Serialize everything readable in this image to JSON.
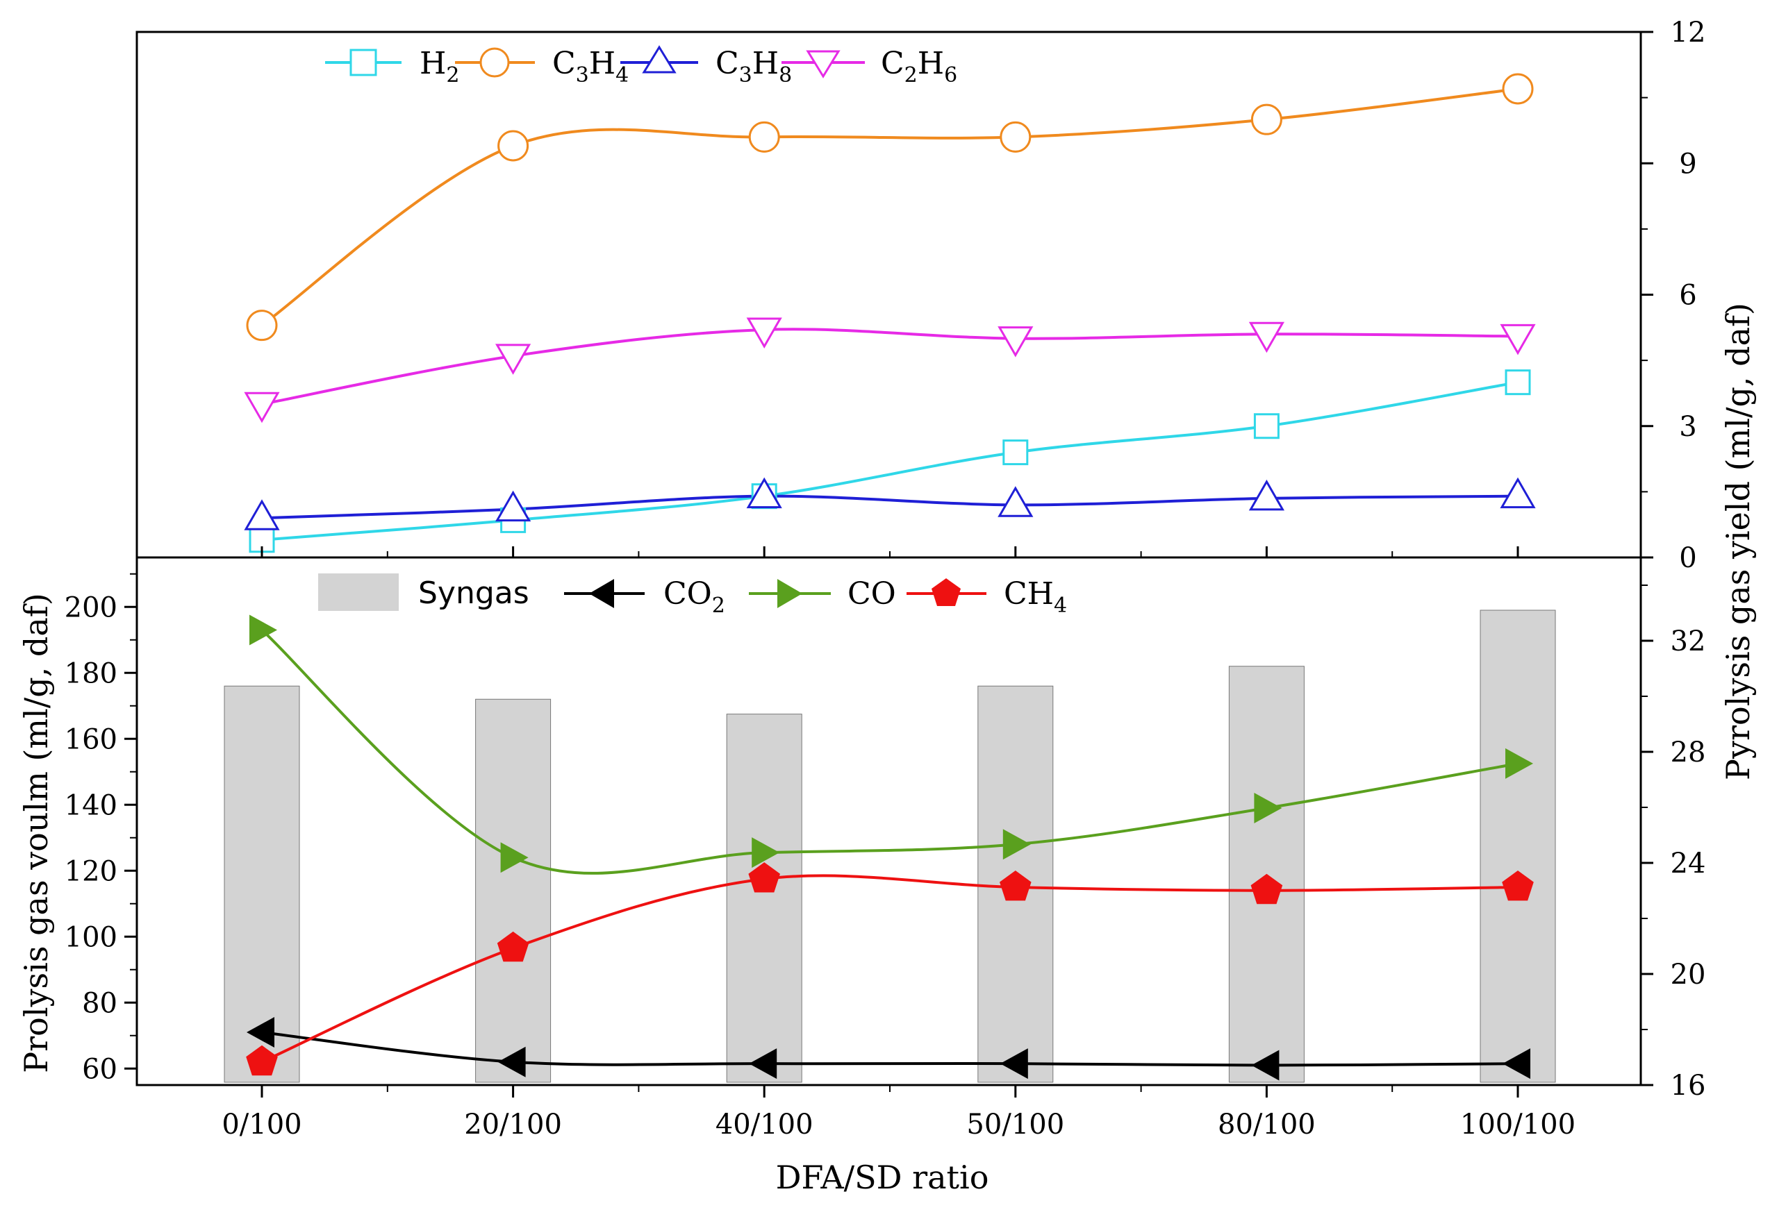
{
  "chart_data": {
    "type": "line",
    "xlabel": "DFA/SD ratio",
    "categories": [
      "0/100",
      "20/100",
      "40/100",
      "50/100",
      "80/100",
      "100/100"
    ],
    "panels": [
      {
        "id": "top",
        "axis": "right",
        "ylabel": "Pyrolysis gas yield (ml/g, daf)",
        "ylim": [
          0,
          12
        ],
        "yticks": [
          "0",
          "3",
          "6",
          "9",
          "12"
        ],
        "series": [
          {
            "name": "H2",
            "base": "H",
            "subscript": "2",
            "color": "#2fd7e8",
            "marker": "square",
            "values": [
              0.4,
              0.85,
              1.4,
              2.4,
              3.0,
              4.0
            ]
          },
          {
            "name": "C3H4",
            "base": "C",
            "mid": "H",
            "sub1": "3",
            "sub2": "4",
            "color": "#f08a1e",
            "marker": "circle",
            "values": [
              5.3,
              9.4,
              9.6,
              9.6,
              10.0,
              10.7
            ]
          },
          {
            "name": "C3H8",
            "base": "C",
            "mid": "H",
            "sub1": "3",
            "sub2": "8",
            "color": "#1f1fd6",
            "marker": "triangle-up",
            "values": [
              0.9,
              1.1,
              1.4,
              1.2,
              1.35,
              1.4
            ]
          },
          {
            "name": "C2H6",
            "base": "C",
            "mid": "H",
            "sub1": "2",
            "sub2": "6",
            "color": "#e62ae6",
            "marker": "triangle-down",
            "values": [
              3.5,
              4.6,
              5.2,
              5.0,
              5.1,
              5.05
            ]
          }
        ]
      },
      {
        "id": "bottom",
        "axis": "left",
        "ylabel": "Prolysis gas voulm (ml/g, daf)",
        "ylim": [
          55,
          215
        ],
        "yticks": [
          "60",
          "80",
          "100",
          "120",
          "140",
          "160",
          "180",
          "200"
        ],
        "right_axis": {
          "ylim": [
            16,
            35
          ],
          "yticks": [
            "16",
            "20",
            "24",
            "28",
            "32"
          ]
        },
        "bars": {
          "name": "Syngas",
          "color": "#d3d3d3",
          "values": [
            176,
            172,
            167.5,
            176,
            182,
            199
          ]
        },
        "series": [
          {
            "name": "CO2",
            "base": "CO",
            "subscript": "2",
            "color": "#000000",
            "marker": "triangle-left",
            "values": [
              71,
              62,
              61.5,
              61.5,
              61,
              61.5
            ]
          },
          {
            "name": "CO",
            "base": "CO",
            "color": "#5aa01e",
            "marker": "triangle-right",
            "values": [
              193,
              124,
              125.5,
              128,
              139,
              152.5
            ]
          },
          {
            "name": "CH4",
            "base": "CH",
            "subscript": "4",
            "color": "#ee1111",
            "marker": "pentagon",
            "values": [
              62,
              96.5,
              117.5,
              115,
              114,
              115
            ]
          }
        ]
      }
    ]
  }
}
